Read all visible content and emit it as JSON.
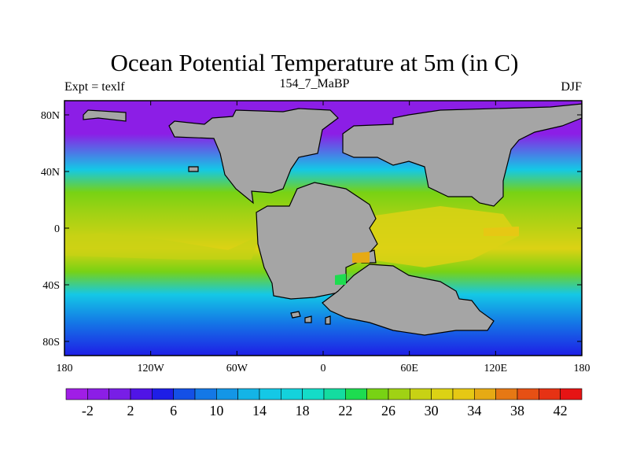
{
  "chart_data": {
    "type": "heatmap",
    "title": "Ocean Potential Temperature at 5m (in C)",
    "left_string": "Expt = texlf",
    "center_string": "154_7_MaBP",
    "right_string": "DJF",
    "x_range": [
      -180,
      180
    ],
    "y_range": [
      -90,
      90
    ],
    "x_ticks": [
      {
        "value": -180,
        "label": "180"
      },
      {
        "value": -120,
        "label": "120W"
      },
      {
        "value": -60,
        "label": "60W"
      },
      {
        "value": 0,
        "label": "0"
      },
      {
        "value": 60,
        "label": "60E"
      },
      {
        "value": 120,
        "label": "120E"
      },
      {
        "value": 180,
        "label": "180"
      }
    ],
    "y_ticks": [
      {
        "value": 80,
        "label": "80N"
      },
      {
        "value": 40,
        "label": "40N"
      },
      {
        "value": 0,
        "label": "0"
      },
      {
        "value": -40,
        "label": "40S"
      },
      {
        "value": -80,
        "label": "80S"
      }
    ],
    "colorbar": {
      "levels": [
        -4,
        -2,
        0,
        2,
        4,
        6,
        8,
        10,
        12,
        14,
        16,
        18,
        20,
        22,
        24,
        26,
        28,
        30,
        32,
        34,
        36,
        38,
        40,
        42,
        44
      ],
      "labels": [
        "-2",
        "2",
        "6",
        "10",
        "14",
        "18",
        "22",
        "26",
        "30",
        "34",
        "38",
        "42"
      ],
      "colors": [
        "#a01ee6",
        "#8c1ee6",
        "#781ee6",
        "#5014e6",
        "#1e1ee6",
        "#1450e6",
        "#1478e6",
        "#1496e6",
        "#14b4e6",
        "#14c8e6",
        "#14d2dc",
        "#14dcc8",
        "#14dca0",
        "#1edc50",
        "#78d214",
        "#a0d214",
        "#c8d214",
        "#dcd214",
        "#e6c814",
        "#e6aa14",
        "#e67814",
        "#e65014",
        "#e63214",
        "#e61414"
      ]
    },
    "zonal_mean_sst": [
      {
        "lat": 85,
        "value": -1
      },
      {
        "lat": 70,
        "value": 1
      },
      {
        "lat": 55,
        "value": 8
      },
      {
        "lat": 45,
        "value": 16
      },
      {
        "lat": 35,
        "value": 22
      },
      {
        "lat": 20,
        "value": 27
      },
      {
        "lat": 5,
        "value": 29
      },
      {
        "lat": -15,
        "value": 31
      },
      {
        "lat": -25,
        "value": 28
      },
      {
        "lat": -40,
        "value": 21
      },
      {
        "lat": -55,
        "value": 13
      },
      {
        "lat": -70,
        "value": 6
      },
      {
        "lat": -85,
        "value": 1
      }
    ],
    "land_color": "#a5a5a5"
  }
}
